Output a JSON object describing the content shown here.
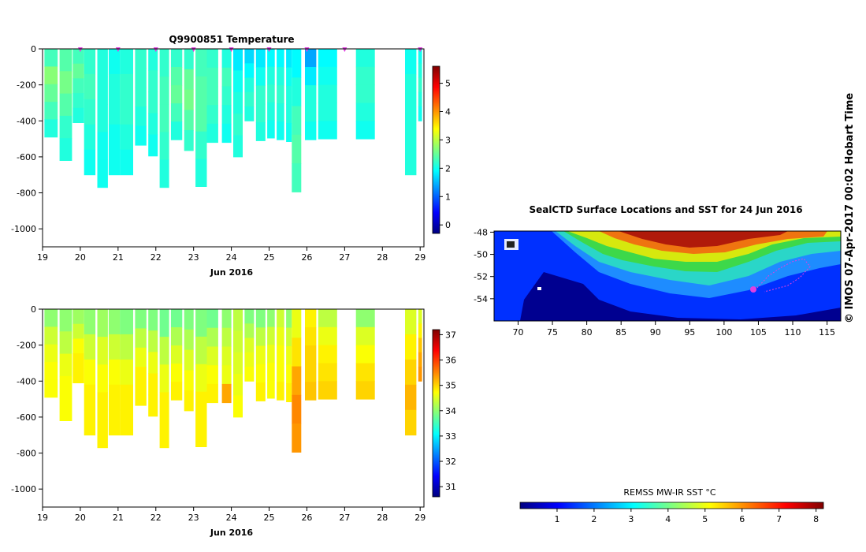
{
  "page": {
    "credit": "© IMOS 07-Apr-2017 00:02 Hobart Time"
  },
  "colors": {
    "jet": [
      "#00007f",
      "#0000ff",
      "#007fff",
      "#00ffff",
      "#7fff7f",
      "#ffff00",
      "#ff7f00",
      "#ff0000",
      "#7f0000"
    ],
    "marker": "#e040e0"
  },
  "chart_data": [
    {
      "id": "temperature",
      "type": "heatmap",
      "title": "Q9900851  Temperature",
      "xlabel": "Jun 2016",
      "ylabel": "",
      "xlim": [
        19,
        29.1
      ],
      "ylim": [
        -1100,
        0
      ],
      "x_ticks": [
        19,
        20,
        21,
        22,
        23,
        24,
        25,
        26,
        27,
        28,
        29
      ],
      "y_ticks": [
        0,
        -200,
        -400,
        -600,
        -800,
        -1000
      ],
      "colorbar": {
        "min": -0.3,
        "max": 5.6,
        "ticks": [
          0,
          1,
          2,
          3,
          4,
          5
        ]
      },
      "surface_markers_x": [
        20,
        21,
        22,
        23,
        24,
        25,
        26,
        27,
        29
      ],
      "profiles": [
        {
          "x": 19.05,
          "w": 0.35,
          "bottom": -490,
          "values": [
            2.3,
            2.7,
            2.5,
            2.3,
            2.1
          ]
        },
        {
          "x": 19.45,
          "w": 0.33,
          "bottom": -620,
          "values": [
            2.4,
            2.6,
            2.4,
            2.2,
            2.1
          ]
        },
        {
          "x": 19.8,
          "w": 0.3,
          "bottom": -410,
          "values": [
            2.3,
            2.5,
            2.3,
            2.2,
            2.1
          ]
        },
        {
          "x": 20.1,
          "w": 0.3,
          "bottom": -700,
          "values": [
            2.2,
            2.3,
            2.2,
            2.1,
            2.0
          ]
        },
        {
          "x": 20.45,
          "w": 0.28,
          "bottom": -770,
          "values": [
            2.1,
            2.1,
            2.1,
            2.0,
            2.0
          ]
        },
        {
          "x": 20.75,
          "w": 0.3,
          "bottom": -700,
          "values": [
            2.0,
            2.1,
            2.1,
            2.0,
            2.0
          ]
        },
        {
          "x": 21.05,
          "w": 0.35,
          "bottom": -700,
          "values": [
            2.1,
            2.2,
            2.2,
            2.1,
            2.0
          ]
        },
        {
          "x": 21.45,
          "w": 0.3,
          "bottom": -535,
          "values": [
            2.2,
            2.2,
            2.2,
            2.1,
            2.0
          ]
        },
        {
          "x": 21.8,
          "w": 0.25,
          "bottom": -595,
          "values": [
            2.1,
            2.2,
            2.2,
            2.1,
            2.0
          ]
        },
        {
          "x": 22.1,
          "w": 0.25,
          "bottom": -770,
          "values": [
            2.2,
            2.3,
            2.3,
            2.2,
            2.1
          ]
        },
        {
          "x": 22.4,
          "w": 0.3,
          "bottom": -505,
          "values": [
            2.2,
            2.4,
            2.5,
            2.3,
            2.1
          ]
        },
        {
          "x": 22.75,
          "w": 0.25,
          "bottom": -565,
          "values": [
            2.2,
            2.5,
            2.6,
            2.4,
            2.2
          ]
        },
        {
          "x": 23.05,
          "w": 0.3,
          "bottom": -765,
          "values": [
            2.3,
            2.4,
            2.4,
            2.2,
            2.1
          ]
        },
        {
          "x": 23.35,
          "w": 0.3,
          "bottom": -520,
          "values": [
            2.2,
            2.3,
            2.3,
            2.2,
            2.1
          ]
        },
        {
          "x": 23.75,
          "w": 0.25,
          "bottom": -520,
          "values": [
            2.1,
            2.3,
            2.2,
            2.1,
            2.0
          ]
        },
        {
          "x": 24.05,
          "w": 0.25,
          "bottom": -600,
          "values": [
            1.8,
            2.0,
            2.1,
            2.2,
            2.1
          ]
        },
        {
          "x": 24.35,
          "w": 0.25,
          "bottom": -400,
          "values": [
            1.7,
            1.9,
            2.1,
            2.2,
            2.1
          ]
        },
        {
          "x": 24.65,
          "w": 0.25,
          "bottom": -510,
          "values": [
            1.8,
            2.0,
            2.2,
            2.2,
            2.1
          ]
        },
        {
          "x": 24.95,
          "w": 0.2,
          "bottom": -495,
          "values": [
            1.9,
            2.1,
            2.2,
            2.1,
            2.0
          ]
        },
        {
          "x": 25.2,
          "w": 0.2,
          "bottom": -505,
          "values": [
            1.9,
            2.1,
            2.2,
            2.1,
            2.0
          ]
        },
        {
          "x": 25.45,
          "w": 0.15,
          "bottom": -515,
          "values": [
            1.8,
            2.0,
            2.1,
            2.1,
            2.0
          ]
        },
        {
          "x": 25.6,
          "w": 0.25,
          "bottom": -795,
          "values": [
            1.9,
            2.1,
            2.3,
            2.4,
            2.3
          ]
        },
        {
          "x": 25.95,
          "w": 0.3,
          "bottom": -505,
          "values": [
            1.4,
            1.8,
            2.1,
            2.1,
            2.0
          ]
        },
        {
          "x": 26.3,
          "w": 0.5,
          "bottom": -500,
          "values": [
            1.9,
            2.0,
            2.1,
            2.1,
            2.0
          ]
        },
        {
          "x": 27.3,
          "w": 0.5,
          "bottom": -500,
          "values": [
            2.1,
            2.2,
            2.2,
            2.1,
            2.0
          ]
        },
        {
          "x": 28.6,
          "w": 0.3,
          "bottom": -700,
          "values": [
            2.0,
            2.1,
            2.1,
            2.1,
            2.1
          ]
        },
        {
          "x": 28.95,
          "w": 0.1,
          "bottom": -400,
          "values": [
            2.0,
            2.1,
            2.2,
            2.1,
            2.0
          ]
        }
      ]
    },
    {
      "id": "salinity",
      "type": "heatmap",
      "title": "",
      "xlabel": "Jun 2016",
      "ylabel": "",
      "xlim": [
        19,
        29.1
      ],
      "ylim": [
        -1100,
        0
      ],
      "x_ticks": [
        19,
        20,
        21,
        22,
        23,
        24,
        25,
        26,
        27,
        28,
        29
      ],
      "y_ticks": [
        0,
        -200,
        -400,
        -600,
        -800,
        -1000
      ],
      "colorbar": {
        "min": 30.6,
        "max": 37.2,
        "ticks": [
          31,
          32,
          33,
          34,
          35,
          36,
          37
        ]
      },
      "profiles": [
        {
          "x": 19.05,
          "w": 0.35,
          "bottom": -490,
          "values": [
            34.0,
            34.4,
            34.6,
            34.7,
            34.7
          ]
        },
        {
          "x": 19.45,
          "w": 0.33,
          "bottom": -620,
          "values": [
            34.0,
            34.3,
            34.6,
            34.7,
            34.7
          ]
        },
        {
          "x": 19.8,
          "w": 0.3,
          "bottom": -410,
          "values": [
            34.1,
            34.4,
            34.7,
            34.8,
            34.8
          ]
        },
        {
          "x": 20.1,
          "w": 0.3,
          "bottom": -700,
          "values": [
            34.0,
            34.4,
            34.7,
            34.8,
            34.8
          ]
        },
        {
          "x": 20.45,
          "w": 0.28,
          "bottom": -770,
          "values": [
            34.1,
            34.5,
            34.7,
            34.8,
            34.8
          ]
        },
        {
          "x": 20.75,
          "w": 0.3,
          "bottom": -700,
          "values": [
            34.0,
            34.4,
            34.7,
            34.8,
            34.8
          ]
        },
        {
          "x": 21.05,
          "w": 0.35,
          "bottom": -700,
          "values": [
            33.9,
            34.3,
            34.6,
            34.8,
            34.8
          ]
        },
        {
          "x": 21.45,
          "w": 0.3,
          "bottom": -535,
          "values": [
            33.9,
            34.3,
            34.6,
            34.8,
            34.8
          ]
        },
        {
          "x": 21.8,
          "w": 0.25,
          "bottom": -595,
          "values": [
            33.9,
            34.3,
            34.6,
            34.8,
            34.8
          ]
        },
        {
          "x": 22.1,
          "w": 0.25,
          "bottom": -770,
          "values": [
            33.8,
            34.3,
            34.6,
            34.8,
            34.8
          ]
        },
        {
          "x": 22.4,
          "w": 0.3,
          "bottom": -505,
          "values": [
            33.8,
            34.2,
            34.5,
            34.7,
            34.8
          ]
        },
        {
          "x": 22.75,
          "w": 0.25,
          "bottom": -565,
          "values": [
            33.9,
            34.2,
            34.5,
            34.7,
            34.8
          ]
        },
        {
          "x": 23.05,
          "w": 0.3,
          "bottom": -765,
          "values": [
            33.9,
            34.3,
            34.6,
            34.8,
            34.8
          ]
        },
        {
          "x": 23.35,
          "w": 0.3,
          "bottom": -520,
          "values": [
            33.8,
            34.2,
            34.5,
            34.7,
            34.8
          ]
        },
        {
          "x": 23.75,
          "w": 0.25,
          "bottom": -520,
          "values": [
            34.0,
            34.3,
            34.5,
            34.6,
            35.3
          ]
        },
        {
          "x": 24.05,
          "w": 0.25,
          "bottom": -600,
          "values": [
            34.3,
            34.4,
            34.5,
            34.6,
            34.7
          ]
        },
        {
          "x": 24.35,
          "w": 0.25,
          "bottom": -400,
          "values": [
            33.9,
            34.2,
            34.5,
            34.6,
            34.7
          ]
        },
        {
          "x": 24.65,
          "w": 0.25,
          "bottom": -510,
          "values": [
            33.9,
            34.3,
            34.6,
            34.7,
            34.8
          ]
        },
        {
          "x": 24.95,
          "w": 0.2,
          "bottom": -495,
          "values": [
            34.0,
            34.4,
            34.6,
            34.7,
            34.7
          ]
        },
        {
          "x": 25.2,
          "w": 0.2,
          "bottom": -505,
          "values": [
            34.4,
            34.6,
            34.7,
            34.7,
            34.8
          ]
        },
        {
          "x": 25.45,
          "w": 0.15,
          "bottom": -515,
          "values": [
            34.0,
            34.4,
            34.6,
            34.7,
            34.8
          ]
        },
        {
          "x": 25.6,
          "w": 0.25,
          "bottom": -795,
          "values": [
            34.6,
            34.9,
            35.3,
            35.5,
            35.4
          ]
        },
        {
          "x": 25.95,
          "w": 0.3,
          "bottom": -505,
          "values": [
            34.8,
            34.9,
            35.0,
            35.0,
            35.1
          ]
        },
        {
          "x": 26.3,
          "w": 0.5,
          "bottom": -500,
          "values": [
            34.3,
            34.6,
            34.8,
            34.9,
            35.0
          ]
        },
        {
          "x": 27.3,
          "w": 0.5,
          "bottom": -500,
          "values": [
            34.0,
            34.5,
            34.7,
            34.9,
            35.0
          ]
        },
        {
          "x": 28.6,
          "w": 0.3,
          "bottom": -700,
          "values": [
            34.5,
            34.8,
            35.0,
            35.2,
            35.0
          ]
        },
        {
          "x": 28.95,
          "w": 0.1,
          "bottom": -400,
          "values": [
            34.5,
            34.8,
            35.1,
            35.3,
            35.4
          ]
        }
      ]
    },
    {
      "id": "sst_map",
      "type": "heatmap",
      "title": "SealCTD Surface Locations and SST for 24 Jun 2016",
      "xlabel": "",
      "ylabel": "",
      "xlim": [
        66.5,
        117
      ],
      "ylim": [
        -56,
        -47.9
      ],
      "x_ticks": [
        70,
        75,
        80,
        85,
        90,
        95,
        100,
        105,
        110,
        115
      ],
      "y_ticks": [
        -48,
        -50,
        -52,
        -54
      ],
      "colorbar": {
        "label": "REMSS MW-IR SST °C",
        "min": 0,
        "max": 8.2,
        "ticks": [
          1,
          2,
          3,
          4,
          5,
          6,
          7,
          8
        ]
      }
    }
  ]
}
